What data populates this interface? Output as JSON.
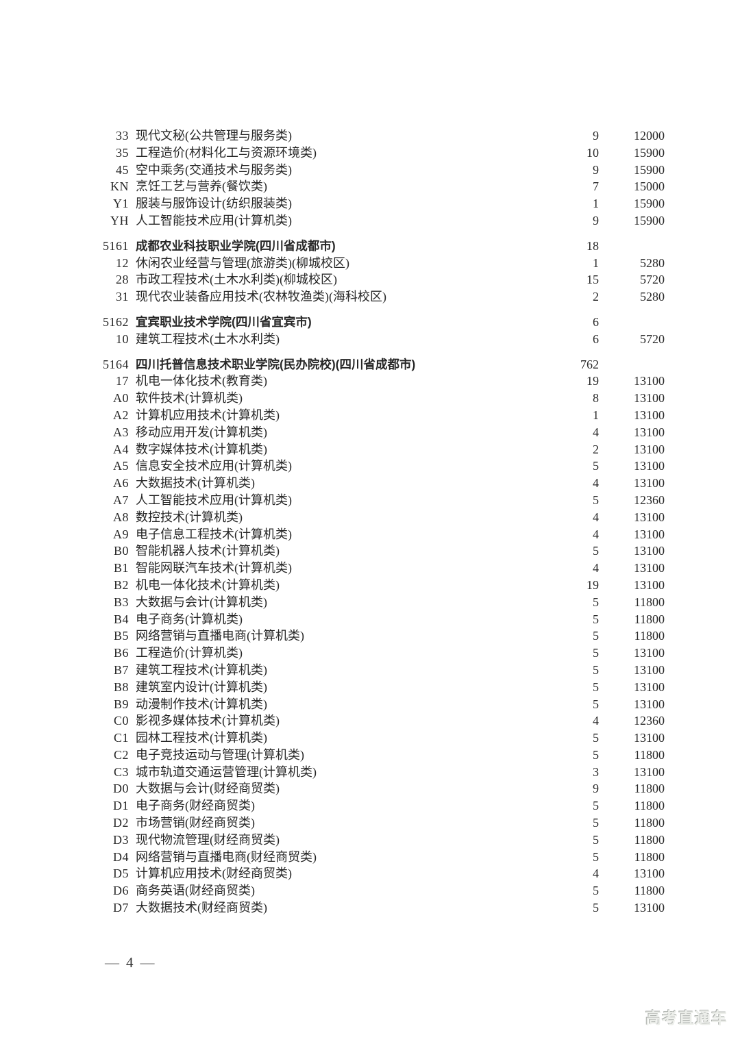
{
  "footer": {
    "dash": "—",
    "page_number": "4"
  },
  "watermark": {
    "text": "高考直通车"
  },
  "table": {
    "sections": [
      {
        "school_code": "",
        "school_name": "",
        "plan_count": "",
        "majors": [
          {
            "code": "33",
            "name": "现代文秘(公共管理与服务类)",
            "count": "9",
            "fee": "12000"
          },
          {
            "code": "35",
            "name": "工程造价(材料化工与资源环境类)",
            "count": "10",
            "fee": "15900"
          },
          {
            "code": "45",
            "name": "空中乘务(交通技术与服务类)",
            "count": "9",
            "fee": "15900"
          },
          {
            "code": "KN",
            "name": "烹饪工艺与营养(餐饮类)",
            "count": "7",
            "fee": "15000"
          },
          {
            "code": "Y1",
            "name": "服装与服饰设计(纺织服装类)",
            "count": "1",
            "fee": "15900"
          },
          {
            "code": "YH",
            "name": "人工智能技术应用(计算机类)",
            "count": "9",
            "fee": "15900"
          }
        ]
      },
      {
        "school_code": "5161",
        "school_name": "成都农业科技职业学院(四川省成都市)",
        "plan_count": "18",
        "majors": [
          {
            "code": "12",
            "name": "休闲农业经营与管理(旅游类)(柳城校区)",
            "count": "1",
            "fee": "5280"
          },
          {
            "code": "28",
            "name": "市政工程技术(土木水利类)(柳城校区)",
            "count": "15",
            "fee": "5720"
          },
          {
            "code": "31",
            "name": "现代农业装备应用技术(农林牧渔类)(海科校区)",
            "count": "2",
            "fee": "5280"
          }
        ]
      },
      {
        "school_code": "5162",
        "school_name": "宜宾职业技术学院(四川省宜宾市)",
        "plan_count": "6",
        "majors": [
          {
            "code": "10",
            "name": "建筑工程技术(土木水利类)",
            "count": "6",
            "fee": "5720"
          }
        ]
      },
      {
        "school_code": "5164",
        "school_name": "四川托普信息技术职业学院(民办院校)(四川省成都市)",
        "plan_count": "762",
        "majors": [
          {
            "code": "17",
            "name": "机电一体化技术(教育类)",
            "count": "19",
            "fee": "13100"
          },
          {
            "code": "A0",
            "name": "软件技术(计算机类)",
            "count": "8",
            "fee": "13100"
          },
          {
            "code": "A2",
            "name": "计算机应用技术(计算机类)",
            "count": "1",
            "fee": "13100"
          },
          {
            "code": "A3",
            "name": "移动应用开发(计算机类)",
            "count": "4",
            "fee": "13100"
          },
          {
            "code": "A4",
            "name": "数字媒体技术(计算机类)",
            "count": "2",
            "fee": "13100"
          },
          {
            "code": "A5",
            "name": "信息安全技术应用(计算机类)",
            "count": "5",
            "fee": "13100"
          },
          {
            "code": "A6",
            "name": "大数据技术(计算机类)",
            "count": "4",
            "fee": "13100"
          },
          {
            "code": "A7",
            "name": "人工智能技术应用(计算机类)",
            "count": "5",
            "fee": "12360"
          },
          {
            "code": "A8",
            "name": "数控技术(计算机类)",
            "count": "4",
            "fee": "13100"
          },
          {
            "code": "A9",
            "name": "电子信息工程技术(计算机类)",
            "count": "4",
            "fee": "13100"
          },
          {
            "code": "B0",
            "name": "智能机器人技术(计算机类)",
            "count": "5",
            "fee": "13100"
          },
          {
            "code": "B1",
            "name": "智能网联汽车技术(计算机类)",
            "count": "4",
            "fee": "13100"
          },
          {
            "code": "B2",
            "name": "机电一体化技术(计算机类)",
            "count": "19",
            "fee": "13100"
          },
          {
            "code": "B3",
            "name": "大数据与会计(计算机类)",
            "count": "5",
            "fee": "11800"
          },
          {
            "code": "B4",
            "name": "电子商务(计算机类)",
            "count": "5",
            "fee": "11800"
          },
          {
            "code": "B5",
            "name": "网络营销与直播电商(计算机类)",
            "count": "5",
            "fee": "11800"
          },
          {
            "code": "B6",
            "name": "工程造价(计算机类)",
            "count": "5",
            "fee": "13100"
          },
          {
            "code": "B7",
            "name": "建筑工程技术(计算机类)",
            "count": "5",
            "fee": "13100"
          },
          {
            "code": "B8",
            "name": "建筑室内设计(计算机类)",
            "count": "5",
            "fee": "13100"
          },
          {
            "code": "B9",
            "name": "动漫制作技术(计算机类)",
            "count": "5",
            "fee": "13100"
          },
          {
            "code": "C0",
            "name": "影视多媒体技术(计算机类)",
            "count": "4",
            "fee": "12360"
          },
          {
            "code": "C1",
            "name": "园林工程技术(计算机类)",
            "count": "5",
            "fee": "13100"
          },
          {
            "code": "C2",
            "name": "电子竞技运动与管理(计算机类)",
            "count": "5",
            "fee": "11800"
          },
          {
            "code": "C3",
            "name": "城市轨道交通运营管理(计算机类)",
            "count": "3",
            "fee": "13100"
          },
          {
            "code": "D0",
            "name": "大数据与会计(财经商贸类)",
            "count": "9",
            "fee": "11800"
          },
          {
            "code": "D1",
            "name": "电子商务(财经商贸类)",
            "count": "5",
            "fee": "11800"
          },
          {
            "code": "D2",
            "name": "市场营销(财经商贸类)",
            "count": "5",
            "fee": "11800"
          },
          {
            "code": "D3",
            "name": "现代物流管理(财经商贸类)",
            "count": "5",
            "fee": "11800"
          },
          {
            "code": "D4",
            "name": "网络营销与直播电商(财经商贸类)",
            "count": "5",
            "fee": "11800"
          },
          {
            "code": "D5",
            "name": "计算机应用技术(财经商贸类)",
            "count": "4",
            "fee": "13100"
          },
          {
            "code": "D6",
            "name": "商务英语(财经商贸类)",
            "count": "5",
            "fee": "11800"
          },
          {
            "code": "D7",
            "name": "大数据技术(财经商贸类)",
            "count": "5",
            "fee": "13100"
          }
        ]
      }
    ]
  }
}
